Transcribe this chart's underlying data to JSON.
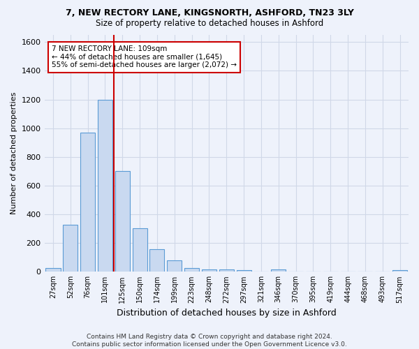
{
  "title1": "7, NEW RECTORY LANE, KINGSNORTH, ASHFORD, TN23 3LY",
  "title2": "Size of property relative to detached houses in Ashford",
  "xlabel": "Distribution of detached houses by size in Ashford",
  "ylabel": "Number of detached properties",
  "bin_labels": [
    "27sqm",
    "52sqm",
    "76sqm",
    "101sqm",
    "125sqm",
    "150sqm",
    "174sqm",
    "199sqm",
    "223sqm",
    "248sqm",
    "272sqm",
    "297sqm",
    "321sqm",
    "346sqm",
    "370sqm",
    "395sqm",
    "419sqm",
    "444sqm",
    "468sqm",
    "493sqm",
    "517sqm"
  ],
  "bar_heights": [
    25,
    325,
    970,
    1200,
    700,
    305,
    155,
    80,
    25,
    18,
    15,
    12,
    0,
    15,
    0,
    0,
    0,
    0,
    0,
    0,
    12
  ],
  "bar_color": "#c9d9f0",
  "bar_edge_color": "#5b9bd5",
  "grid_color": "#d0d8e8",
  "background_color": "#eef2fb",
  "red_line_after_bar": 3,
  "red_line_color": "#cc0000",
  "annotation_text": "7 NEW RECTORY LANE: 109sqm\n← 44% of detached houses are smaller (1,645)\n55% of semi-detached houses are larger (2,072) →",
  "annotation_box_color": "#ffffff",
  "annotation_box_edge": "#cc0000",
  "ylim": [
    0,
    1650
  ],
  "yticks": [
    0,
    200,
    400,
    600,
    800,
    1000,
    1200,
    1400,
    1600
  ],
  "footer_text": "Contains HM Land Registry data © Crown copyright and database right 2024.\nContains public sector information licensed under the Open Government Licence v3.0."
}
